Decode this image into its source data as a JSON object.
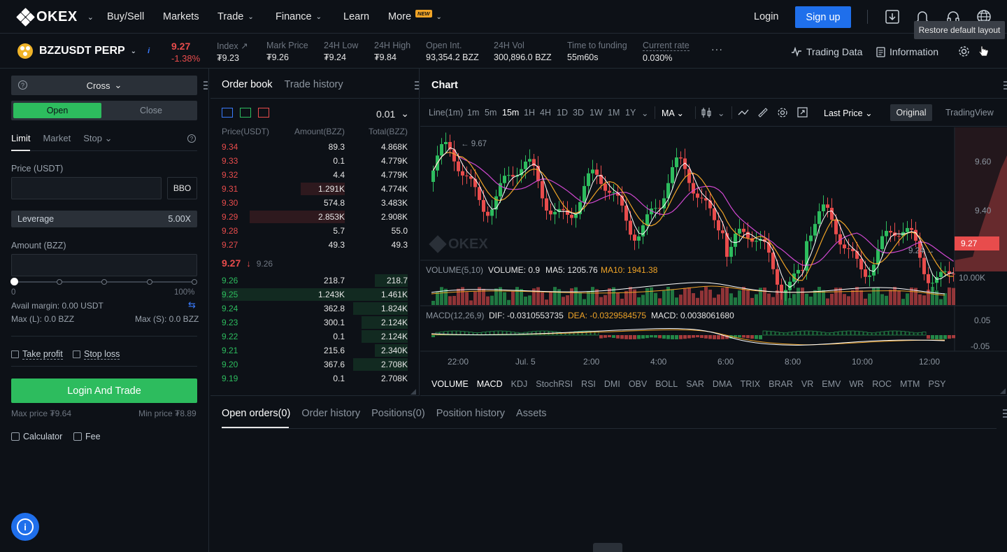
{
  "brand": {
    "name": "OKEX"
  },
  "nav": {
    "items": [
      {
        "label": "Buy/Sell",
        "caret": false
      },
      {
        "label": "Markets",
        "caret": false
      },
      {
        "label": "Trade",
        "caret": true
      },
      {
        "label": "Finance",
        "caret": true
      },
      {
        "label": "Learn",
        "caret": false
      },
      {
        "label": "More",
        "caret": true,
        "badge": "NEW"
      }
    ],
    "login": "Login",
    "signup": "Sign up",
    "tooltip": "Restore default layout"
  },
  "ticker": {
    "pair": "BZZUSDT PERP",
    "info_icon": "i",
    "last_price": "9.27",
    "change_pct": "-1.38%",
    "stats": [
      {
        "key": "Index",
        "value": "₮9.23",
        "dotted": false
      },
      {
        "key": "Mark Price",
        "value": "₮9.26",
        "dotted": false
      },
      {
        "key": "24H Low",
        "value": "₮9.24",
        "dotted": false
      },
      {
        "key": "24H High",
        "value": "₮9.84",
        "dotted": false
      },
      {
        "key": "Open Int.",
        "value": "93,354.2 BZZ",
        "dotted": false
      },
      {
        "key": "24H Vol",
        "value": "300,896.0 BZZ",
        "dotted": false
      },
      {
        "key": "Time to funding",
        "value": "55m60s",
        "dotted": false
      },
      {
        "key": "Current rate",
        "value": "0.030%",
        "dotted": true
      }
    ],
    "more": "···",
    "trading_data": "Trading Data",
    "information": "Information"
  },
  "order_form": {
    "margin_mode": "Cross",
    "open": "Open",
    "close": "Close",
    "tabs": [
      "Limit",
      "Market",
      "Stop"
    ],
    "price_label": "Price (USDT)",
    "bbo": "BBO",
    "leverage_label": "Leverage",
    "leverage_value": "5.00X",
    "amount_label": "Amount (BZZ)",
    "slider_min": "0",
    "slider_max": "100%",
    "slider_value": 0,
    "avail_margin": "Avail margin: 0.00 USDT",
    "max_long": "Max (L): 0.0 BZZ",
    "max_short": "Max (S): 0.0 BZZ",
    "take_profit": "Take profit",
    "stop_loss": "Stop loss",
    "submit": "Login And Trade",
    "max_price": "Max price ₮9.64",
    "min_price": "Min price ₮8.89",
    "calculator": "Calculator",
    "fee": "Fee"
  },
  "orderbook": {
    "tabs": [
      "Order book",
      "Trade history"
    ],
    "precision": "0.01",
    "headers": [
      "Price(USDT)",
      "Amount(BZZ)",
      "Total(BZZ)"
    ],
    "asks": [
      {
        "price": "9.34",
        "amount": "89.3",
        "total": "4.868K",
        "depth": 0.0,
        "amt_depth": 0.0
      },
      {
        "price": "9.33",
        "amount": "0.1",
        "total": "4.779K",
        "depth": 0.0,
        "amt_depth": 0.0
      },
      {
        "price": "9.32",
        "amount": "4.4",
        "total": "4.779K",
        "depth": 0.0,
        "amt_depth": 0.0
      },
      {
        "price": "9.31",
        "amount": "1.291K",
        "total": "4.774K",
        "depth": 0.0,
        "amt_depth": 0.36
      },
      {
        "price": "9.30",
        "amount": "574.8",
        "total": "3.483K",
        "depth": 0.0,
        "amt_depth": 0.0
      },
      {
        "price": "9.29",
        "amount": "2.853K",
        "total": "2.908K",
        "depth": 0.0,
        "amt_depth": 0.77
      },
      {
        "price": "9.28",
        "amount": "5.7",
        "total": "55.0",
        "depth": 0.0,
        "amt_depth": 0.0
      },
      {
        "price": "9.27",
        "amount": "49.3",
        "total": "49.3",
        "depth": 0.0,
        "amt_depth": 0.0
      }
    ],
    "mid_price": "9.27",
    "mid_arrow": "↓",
    "index_price": "9.26",
    "bids": [
      {
        "price": "9.26",
        "amount": "218.7",
        "total": "218.7",
        "depth": 0.52,
        "amt_depth": 0.0
      },
      {
        "price": "9.25",
        "amount": "1.243K",
        "total": "1.461K",
        "depth": 1.0,
        "amt_depth": 1.0
      },
      {
        "price": "9.24",
        "amount": "362.8",
        "total": "1.824K",
        "depth": 0.87,
        "amt_depth": 0.0
      },
      {
        "price": "9.23",
        "amount": "300.1",
        "total": "2.124K",
        "depth": 0.73,
        "amt_depth": 0.0
      },
      {
        "price": "9.22",
        "amount": "0.1",
        "total": "2.124K",
        "depth": 0.73,
        "amt_depth": 0.0
      },
      {
        "price": "9.21",
        "amount": "215.6",
        "total": "2.340K",
        "depth": 0.52,
        "amt_depth": 0.0
      },
      {
        "price": "9.20",
        "amount": "367.6",
        "total": "2.708K",
        "depth": 0.87,
        "amt_depth": 0.0
      },
      {
        "price": "9.19",
        "amount": "0.1",
        "total": "2.708K",
        "depth": 0.0,
        "amt_depth": 0.0
      }
    ]
  },
  "chart": {
    "title": "Chart",
    "intervals": [
      "Line(1m)",
      "1m",
      "5m",
      "15m",
      "1H",
      "4H",
      "1D",
      "3D",
      "1W",
      "1M",
      "1Y"
    ],
    "selected_interval": "15m",
    "indicator": "MA",
    "price_type": "Last Price",
    "view_original": "Original",
    "view_tradingview": "TradingView",
    "high_marker": "← 9.67",
    "low_marker": "9.24 →",
    "last_label": "9.27",
    "price_ticks": [
      "9.60",
      "9.40"
    ],
    "volume_tick": "10.00K",
    "macd_ticks": [
      "0.05",
      "-0.05"
    ],
    "time_ticks": [
      "22:00",
      "Jul. 5",
      "2:00",
      "4:00",
      "6:00",
      "8:00",
      "10:00",
      "12:00"
    ],
    "watermark": "OKEX",
    "volume_legend": {
      "name": "VOLUME(5,10)",
      "volume": "VOLUME: 0.9",
      "ma5": "MA5: 1205.76",
      "ma10": "MA10: 1941.38"
    },
    "macd_legend": {
      "name": "MACD(12,26,9)",
      "dif": "DIF: -0.0310553735",
      "dea": "DEA: -0.0329584575",
      "macd": "MACD: 0.0038061680"
    },
    "indicators": [
      "VOLUME",
      "MACD",
      "KDJ",
      "StochRSI",
      "RSI",
      "DMI",
      "OBV",
      "BOLL",
      "SAR",
      "DMA",
      "TRIX",
      "BRAR",
      "VR",
      "EMV",
      "WR",
      "ROC",
      "MTM",
      "PSY"
    ],
    "selected_indicators": [
      "VOLUME",
      "MACD"
    ],
    "colors": {
      "up": "#2dbc5e",
      "down": "#e84c4c",
      "ma_fast": "#ffffff",
      "ma_mid": "#f0a427",
      "ma_slow": "#d048d0"
    }
  },
  "bottom": {
    "tabs": [
      "Open orders(0)",
      "Order history",
      "Positions(0)",
      "Position history",
      "Assets"
    ]
  }
}
